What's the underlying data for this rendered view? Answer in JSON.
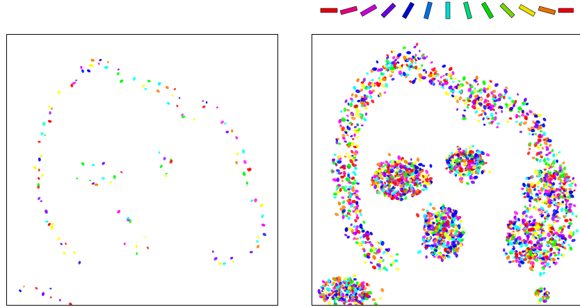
{
  "legend": {
    "orientation_colors": [
      "#e3000e",
      "#e6007e",
      "#c800d8",
      "#6a00e0",
      "#0008d8",
      "#0070e8",
      "#00d8d8",
      "#00d878",
      "#00d800",
      "#78d800",
      "#e8e000",
      "#e87000",
      "#e3000e"
    ]
  },
  "panels": [
    {
      "id": "left",
      "description_id": "sparse-orientation-map"
    },
    {
      "id": "right",
      "description_id": "dense-orientation-map"
    }
  ],
  "dot_colors": [
    "#ff0000",
    "#ff00ff",
    "#0000ff",
    "#00ffff",
    "#00ff00",
    "#ffff00",
    "#ff8000",
    "#8000ff"
  ]
}
